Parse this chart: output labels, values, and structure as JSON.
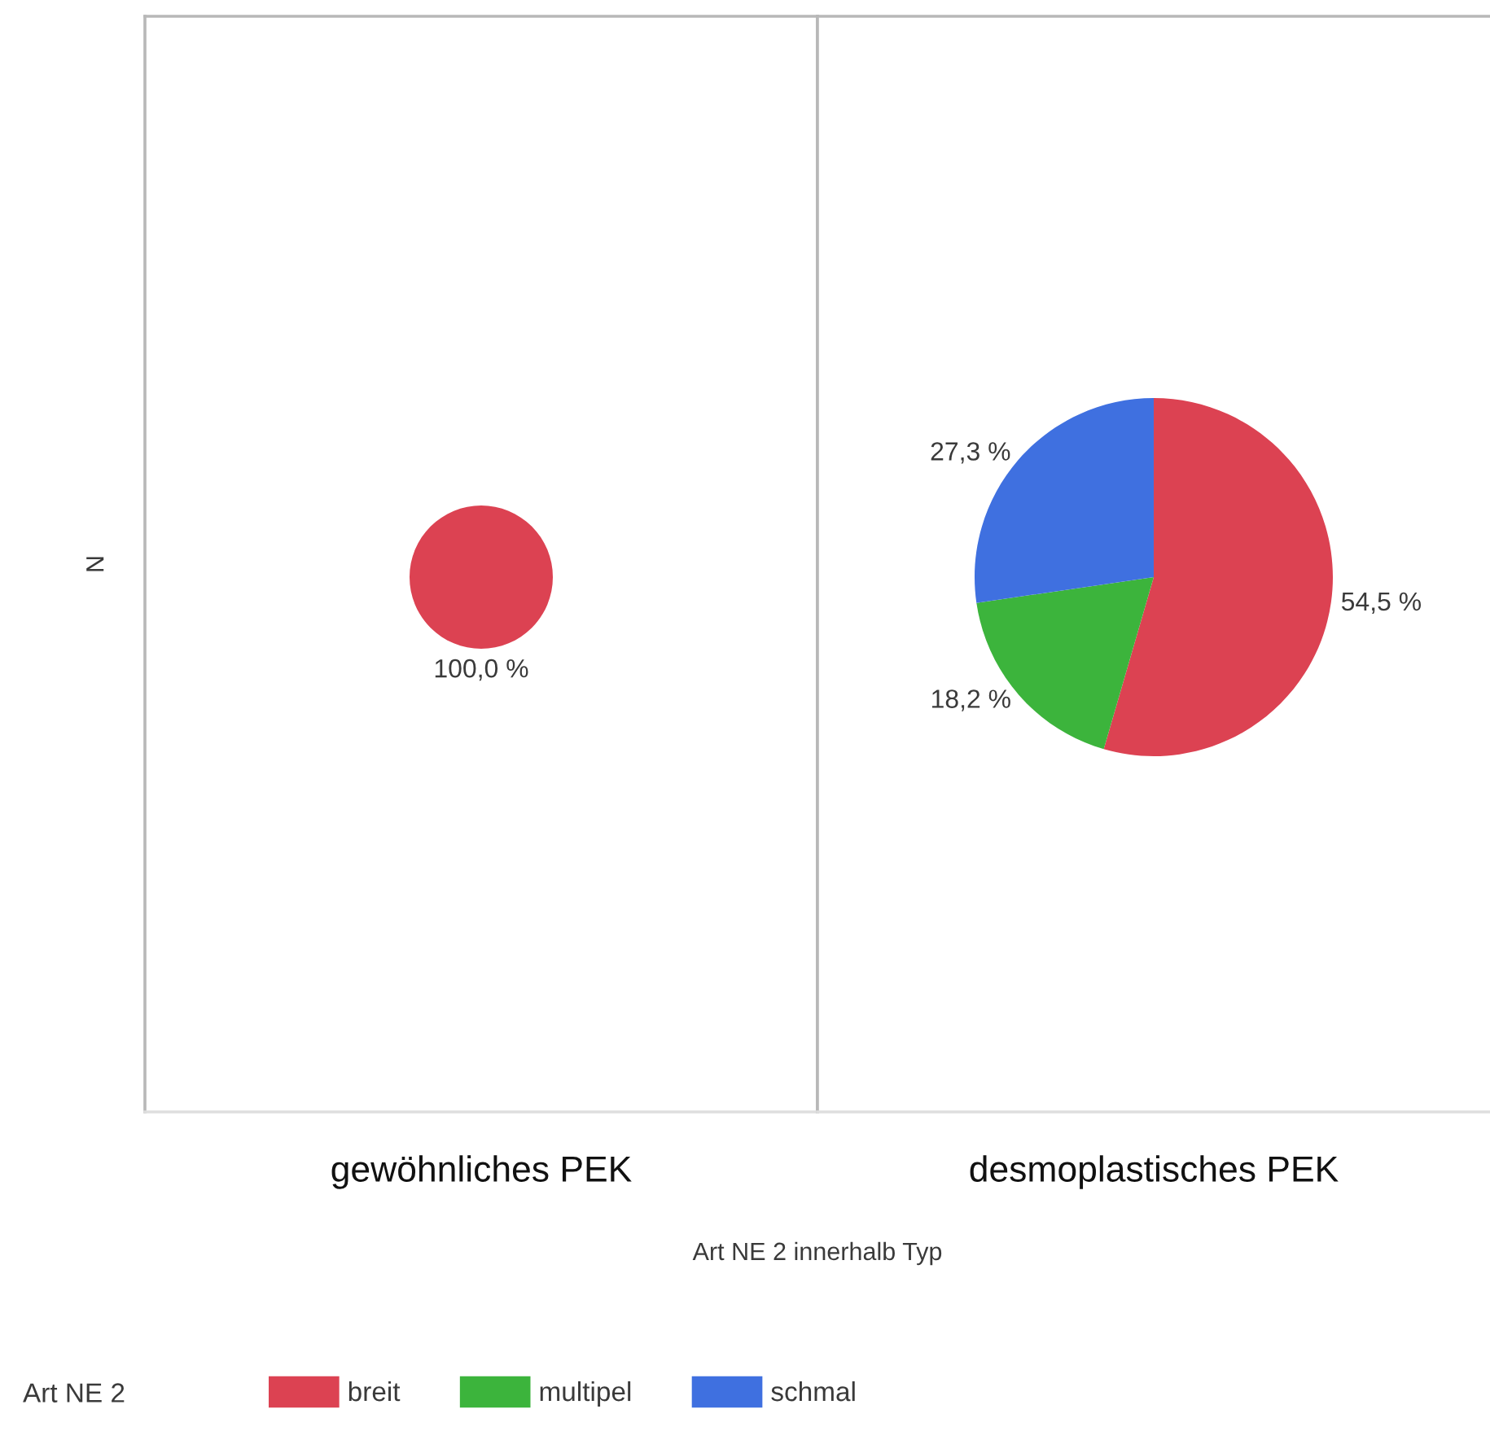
{
  "chart_data": [
    {
      "type": "pie",
      "title": "gewöhnliches PEK",
      "ylabel": "N",
      "categories": [
        null
      ],
      "values": [
        100
      ],
      "colors": [
        "#dc4252"
      ],
      "value_labels": [
        "100,0 %"
      ]
    },
    {
      "type": "pie",
      "title": "desmoplastisches PEK",
      "xlabel": "Art NE 2 innerhalb Typ",
      "categories": [
        "breit",
        "multipel",
        "schmal"
      ],
      "values": [
        54.5,
        18.2,
        27.3
      ],
      "colors": [
        "#dc4252",
        "#3cb43c",
        "#3f70e0"
      ],
      "value_labels": [
        "54,5 %",
        "18,2 %",
        "27,3 %"
      ],
      "legend": "bottom",
      "legend_title": "Art NE 2"
    }
  ]
}
